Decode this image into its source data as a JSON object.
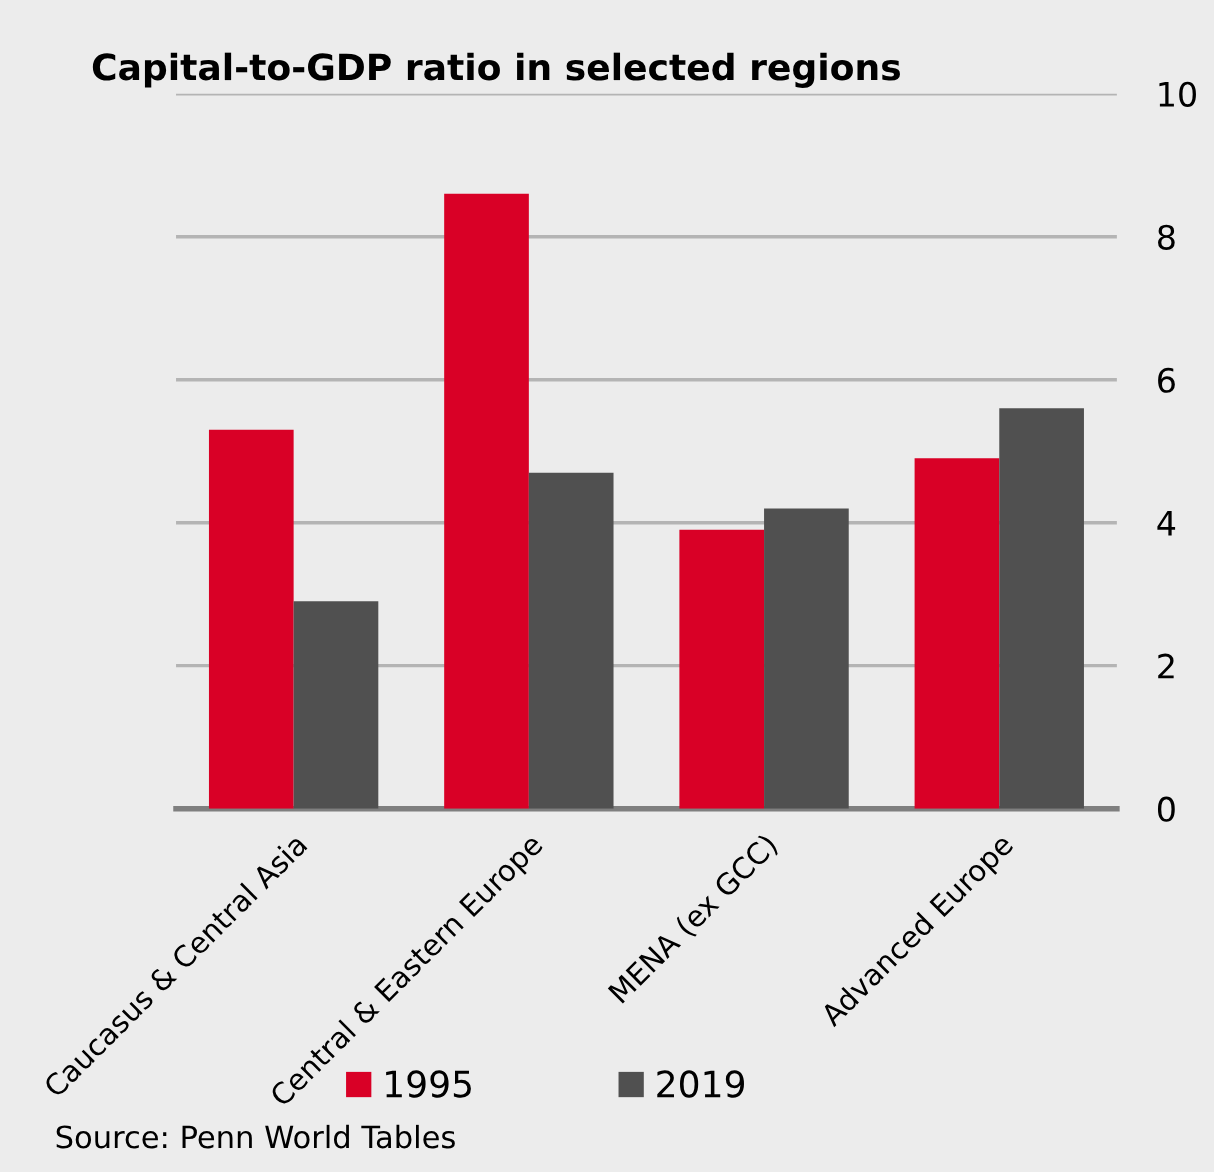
{
  "chart_data": {
    "type": "bar",
    "title": "Capital-to-GDP ratio in selected regions",
    "categories": [
      "Caucasus & Central Asia",
      "Central & Eastern Europe",
      "MENA (ex GCC)",
      "Advanced Europe"
    ],
    "series": [
      {
        "name": "1995",
        "color": "#d90026",
        "values": [
          5.3,
          8.6,
          3.9,
          4.9
        ]
      },
      {
        "name": "2019",
        "color": "#505050",
        "values": [
          2.9,
          4.7,
          4.2,
          5.6
        ]
      }
    ],
    "ylim": [
      0,
      10
    ],
    "yticks": [
      0,
      2,
      4,
      6,
      8,
      10
    ],
    "grid": "y",
    "legend": "bottom",
    "annotations": [
      "Source: Penn World Tables"
    ]
  }
}
